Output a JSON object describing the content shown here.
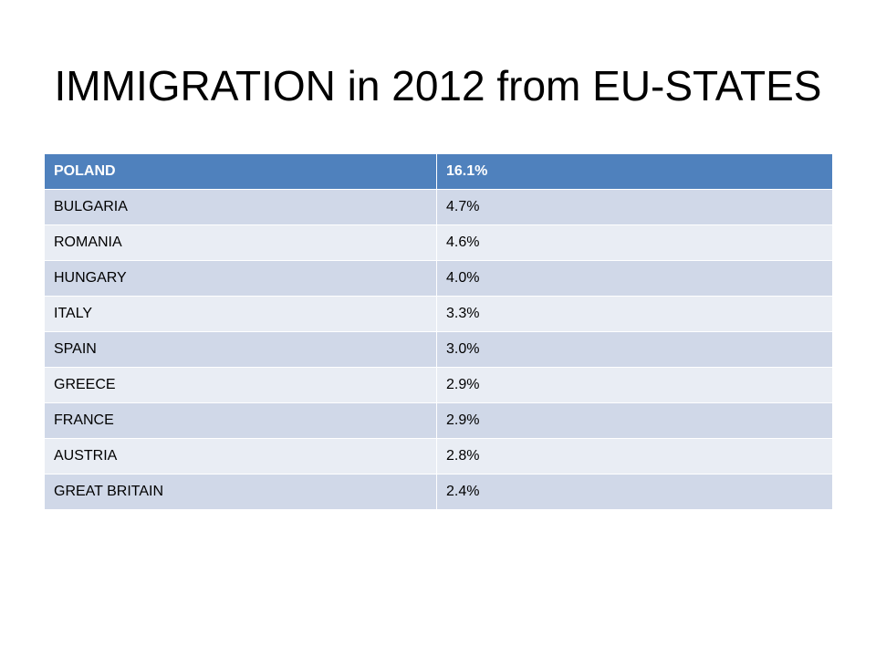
{
  "slide": {
    "title": "IMMIGRATION in 2012 from EU-STATES"
  },
  "table": {
    "header": {
      "country": "POLAND",
      "share": "16.1%"
    },
    "rows": [
      {
        "country": "BULGARIA",
        "share": "4.7%"
      },
      {
        "country": "ROMANIA",
        "share": "4.6%"
      },
      {
        "country": "HUNGARY",
        "share": "4.0%"
      },
      {
        "country": "ITALY",
        "share": "3.3%"
      },
      {
        "country": "SPAIN",
        "share": "3.0%"
      },
      {
        "country": "GREECE",
        "share": "2.9%"
      },
      {
        "country": "FRANCE",
        "share": "2.9%"
      },
      {
        "country": "AUSTRIA",
        "share": "2.8%"
      },
      {
        "country": "GREAT BRITAIN",
        "share": "2.4%"
      }
    ]
  },
  "colors": {
    "header_fill": "#4f81bd",
    "band_dark": "#d0d8e8",
    "band_light": "#e9edf4"
  }
}
